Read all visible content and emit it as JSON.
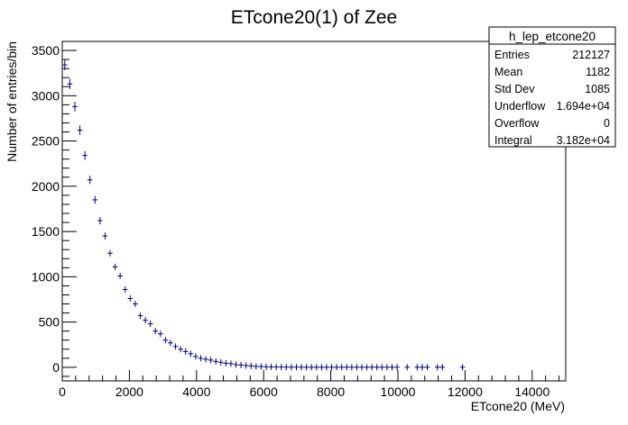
{
  "chart_data": {
    "type": "scatter",
    "title": "ETcone20(1) of Zee",
    "xlabel": "ETcone20 (MeV)",
    "ylabel": "Number of entries/bin",
    "xlim": [
      0,
      15000
    ],
    "ylim": [
      -150,
      3600
    ],
    "x_ticks": [
      0,
      2000,
      4000,
      6000,
      8000,
      10000,
      12000,
      14000
    ],
    "x_tick_labels": [
      "0",
      "2000",
      "4000",
      "6000",
      "8000",
      "10000",
      "12000",
      "14000"
    ],
    "y_ticks": [
      0,
      500,
      1000,
      1500,
      2000,
      2500,
      3000,
      3500
    ],
    "y_tick_labels": [
      "0",
      "500",
      "1000",
      "1500",
      "2000",
      "2500",
      "3000",
      "3500"
    ],
    "bin_width": 150,
    "marker_color": "#000080",
    "grid": false,
    "legend": "none",
    "series": [
      {
        "x": [
          75,
          225,
          375,
          525,
          675,
          825,
          975,
          1125,
          1275,
          1425,
          1575,
          1725,
          1875,
          2025,
          2175,
          2325,
          2475,
          2625,
          2775,
          2925,
          3075,
          3225,
          3375,
          3525,
          3675,
          3825,
          3975,
          4125,
          4275,
          4425,
          4575,
          4725,
          4875,
          5025,
          5175,
          5325,
          5475,
          5625,
          5775,
          5925,
          6075,
          6225,
          6375,
          6525,
          6675,
          6825,
          6975,
          7125,
          7275,
          7425,
          7575,
          7725,
          7875,
          8025,
          8175,
          8325,
          8475,
          8625,
          8775,
          8925,
          9075,
          9225,
          9375,
          9525,
          9675,
          9825,
          9975,
          10275,
          10575,
          10725,
          10875,
          11175,
          11325,
          11925
        ],
        "y": [
          3340,
          3130,
          2880,
          2620,
          2340,
          2070,
          1850,
          1620,
          1450,
          1260,
          1110,
          1010,
          860,
          760,
          700,
          570,
          520,
          480,
          400,
          370,
          300,
          270,
          230,
          200,
          175,
          150,
          120,
          100,
          90,
          80,
          65,
          55,
          45,
          40,
          30,
          25,
          20,
          15,
          10,
          8,
          6,
          5,
          3,
          3,
          2,
          2,
          2,
          2,
          1,
          1,
          1,
          1,
          1,
          1,
          1,
          1,
          1,
          1,
          1,
          1,
          1,
          1,
          1,
          1,
          1,
          1,
          1,
          1,
          1,
          1,
          1,
          1,
          1,
          1
        ]
      }
    ]
  },
  "stats": {
    "name": "h_lep_etcone20",
    "rows": [
      {
        "label": "Entries",
        "value": "212127"
      },
      {
        "label": "Mean",
        "value": "1182"
      },
      {
        "label": "Std Dev",
        "value": "1085"
      },
      {
        "label": "Underflow",
        "value": "1.694e+04"
      },
      {
        "label": "Overflow",
        "value": "0"
      },
      {
        "label": "Integral",
        "value": "3.182e+04"
      }
    ]
  }
}
